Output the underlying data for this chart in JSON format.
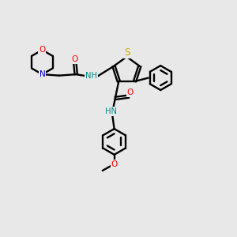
{
  "background_color": "#e8e8e8",
  "bond_color": "#000000",
  "atom_colors": {
    "O": "#ff0000",
    "N": "#0000cd",
    "S": "#ccaa00",
    "H_color": "#008b8b",
    "C": "#000000"
  },
  "figsize": [
    3.0,
    3.0
  ],
  "dpi": 100
}
